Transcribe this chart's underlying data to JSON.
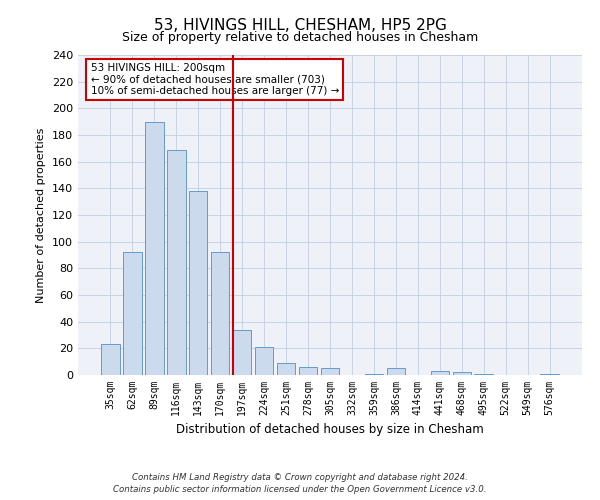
{
  "title": "53, HIVINGS HILL, CHESHAM, HP5 2PG",
  "subtitle": "Size of property relative to detached houses in Chesham",
  "xlabel": "Distribution of detached houses by size in Chesham",
  "ylabel": "Number of detached properties",
  "bar_labels": [
    "35sqm",
    "62sqm",
    "89sqm",
    "116sqm",
    "143sqm",
    "170sqm",
    "197sqm",
    "224sqm",
    "251sqm",
    "278sqm",
    "305sqm",
    "332sqm",
    "359sqm",
    "386sqm",
    "414sqm",
    "441sqm",
    "468sqm",
    "495sqm",
    "522sqm",
    "549sqm",
    "576sqm"
  ],
  "bar_values": [
    23,
    92,
    190,
    169,
    138,
    92,
    34,
    21,
    9,
    6,
    5,
    0,
    1,
    5,
    0,
    3,
    2,
    1,
    0,
    0,
    1
  ],
  "bar_color": "#ccdaed",
  "bar_edge_color": "#6699cc",
  "ylim": [
    0,
    240
  ],
  "yticks": [
    0,
    20,
    40,
    60,
    80,
    100,
    120,
    140,
    160,
    180,
    200,
    220,
    240
  ],
  "property_line_index": 6,
  "annotation_title": "53 HIVINGS HILL: 200sqm",
  "annotation_line1": "← 90% of detached houses are smaller (703)",
  "annotation_line2": "10% of semi-detached houses are larger (77) →",
  "annotation_box_color": "#cc0000",
  "footer_line1": "Contains HM Land Registry data © Crown copyright and database right 2024.",
  "footer_line2": "Contains public sector information licensed under the Open Government Licence v3.0.",
  "background_color": "#eef2f8",
  "grid_color": "#c0cfe0",
  "title_fontsize": 11,
  "subtitle_fontsize": 9,
  "xlabel_fontsize": 8.5,
  "ylabel_fontsize": 8,
  "tick_fontsize": 7,
  "annotation_fontsize": 7.5,
  "footer_fontsize": 6.2
}
